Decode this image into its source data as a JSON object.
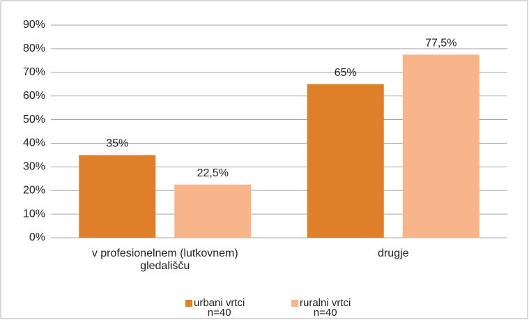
{
  "chart_data": {
    "type": "bar",
    "categories": [
      "v profesionelnem (lutkovnem)\ngledališču",
      "drugje"
    ],
    "series": [
      {
        "name": "urbani vrtci\nn=40",
        "color": "#e07f2a",
        "values": [
          35,
          65
        ],
        "value_labels": [
          "35%",
          "65%"
        ]
      },
      {
        "name": "ruralni vrtci\nn=40",
        "color": "#f8b48a",
        "values": [
          22.5,
          77.5
        ],
        "value_labels": [
          "22,5%",
          "77,5%"
        ]
      }
    ],
    "ylim": [
      0,
      90
    ],
    "yticks": [
      {
        "value": 0,
        "label": "0%"
      },
      {
        "value": 10,
        "label": "10%"
      },
      {
        "value": 20,
        "label": "20%"
      },
      {
        "value": 30,
        "label": "30%"
      },
      {
        "value": 40,
        "label": "40%"
      },
      {
        "value": 50,
        "label": "50%"
      },
      {
        "value": 60,
        "label": "60%"
      },
      {
        "value": 70,
        "label": "70%"
      },
      {
        "value": 80,
        "label": "80%"
      },
      {
        "value": 90,
        "label": "90%"
      }
    ],
    "grid": true,
    "legend": "bottom"
  }
}
